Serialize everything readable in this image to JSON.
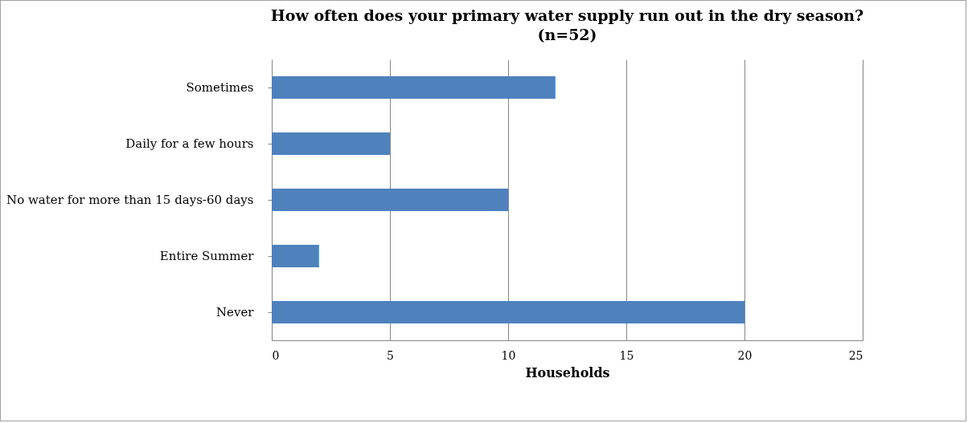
{
  "chart_data": {
    "type": "bar",
    "orientation": "horizontal",
    "title": "How often does your primary water supply run out in the dry season? (n=52)",
    "xlabel": "Households",
    "categories": [
      "Sometimes",
      "Daily for a few hours",
      "No water for more than 15 days-60 days",
      "Entire Summer",
      "Never"
    ],
    "values": [
      12,
      5,
      10,
      2,
      20
    ],
    "color": "#4f81bd",
    "xlim": [
      0,
      25
    ],
    "xticks": [
      0,
      5,
      10,
      15,
      20,
      25
    ],
    "grid": "x"
  }
}
